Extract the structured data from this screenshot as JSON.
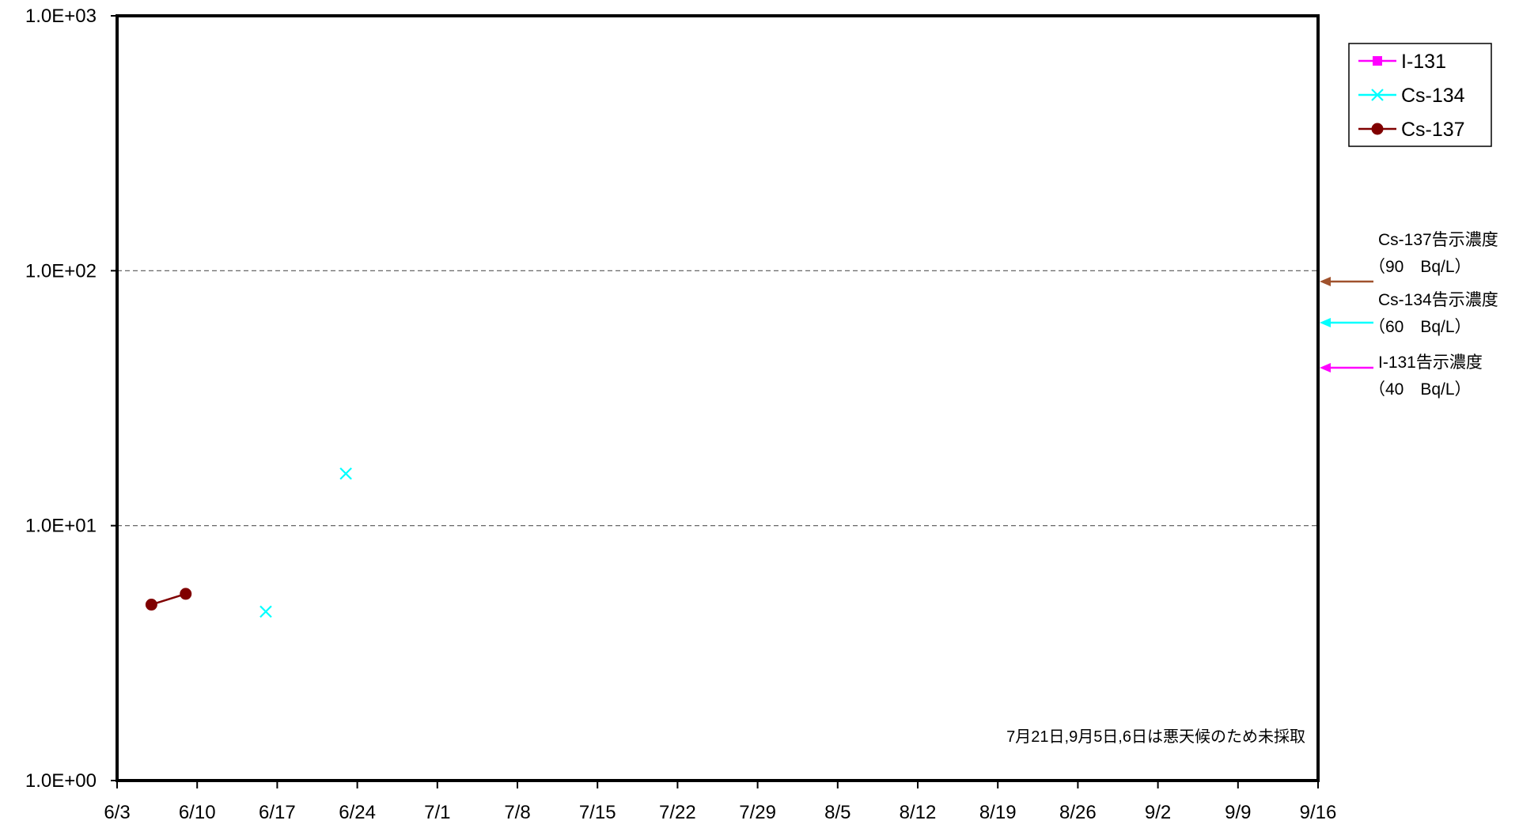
{
  "chart_data": {
    "type": "line",
    "x_ticks": [
      "6/3",
      "6/10",
      "6/17",
      "6/24",
      "7/1",
      "7/8",
      "7/15",
      "7/22",
      "7/29",
      "8/5",
      "8/12",
      "8/19",
      "8/26",
      "9/2",
      "9/9",
      "9/16"
    ],
    "y_scale": "log",
    "y_ticks": [
      "1.0E+00",
      "1.0E+01",
      "1.0E+02",
      "1.0E+03"
    ],
    "ylim": [
      1,
      1000
    ],
    "xlim": [
      "6/3",
      "9/16"
    ],
    "grid": "horizontal dashed at 1.0E+01 and 1.0E+02",
    "legend_position": "top-right",
    "series": [
      {
        "name": "I-131",
        "color": "#ff00ff",
        "marker": "square",
        "points": []
      },
      {
        "name": "Cs-134",
        "color": "#00ffff",
        "marker": "x",
        "points": [
          {
            "x": "6/16",
            "y": 4.6
          },
          {
            "x": "6/23",
            "y": 16
          }
        ]
      },
      {
        "name": "Cs-137",
        "color": "#800000",
        "marker": "circle",
        "points": [
          {
            "x": "6/6",
            "y": 4.9
          },
          {
            "x": "6/9",
            "y": 5.4
          }
        ]
      }
    ],
    "reference_lines": [
      {
        "label": "Cs-137告示濃度",
        "value_text": "（90　Bq/L）",
        "value": 90,
        "color": "#a0522d"
      },
      {
        "label": "Cs-134告示濃度",
        "value_text": "（60　Bq/L）",
        "value": 60,
        "color": "#00ffff"
      },
      {
        "label": "I-131告示濃度",
        "value_text": "（40　Bq/L）",
        "value": 40,
        "color": "#ff00ff"
      }
    ],
    "annotation": "7月21日,9月5日,6日は悪天候のため未採取"
  }
}
